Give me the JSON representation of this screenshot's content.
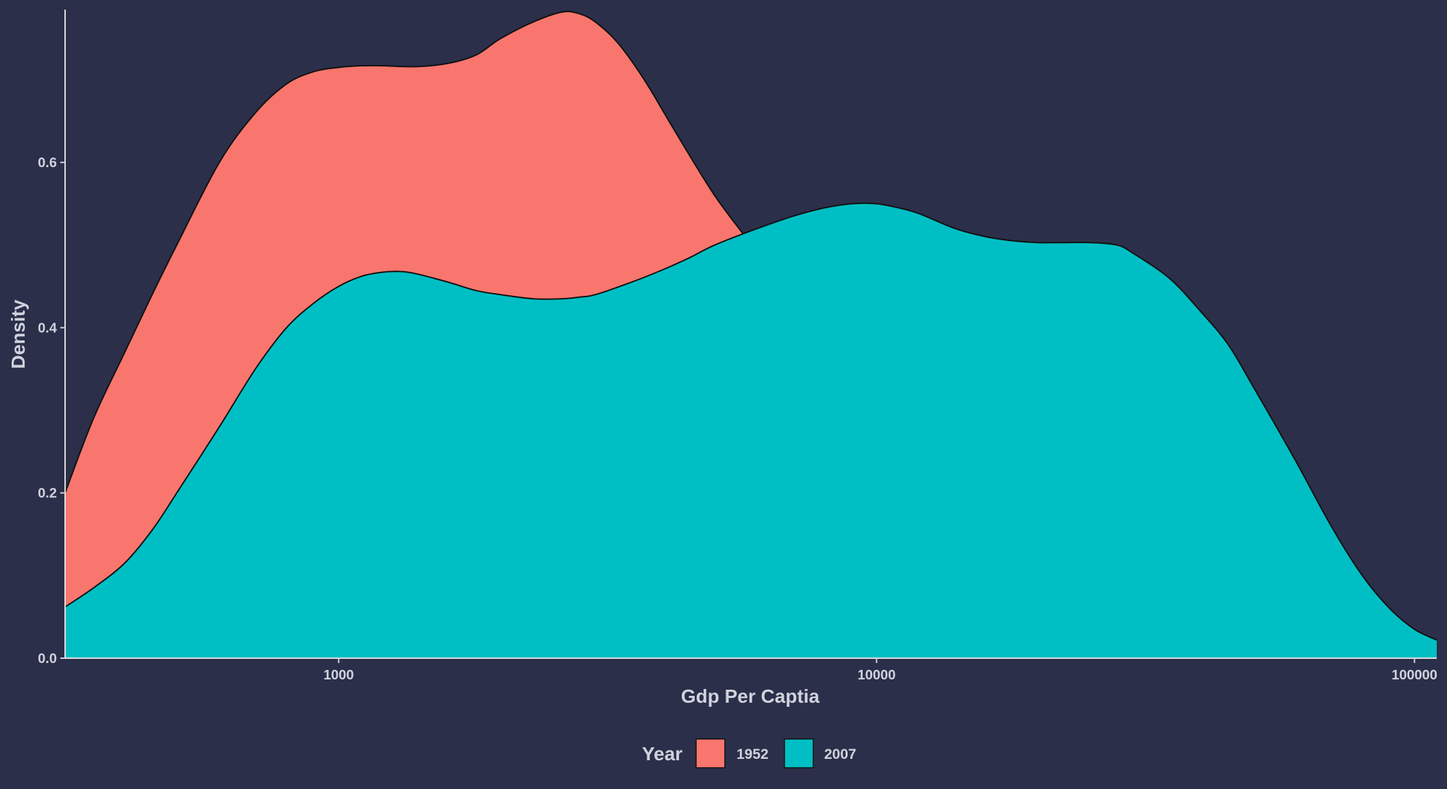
{
  "chart_data": {
    "type": "area",
    "xlabel": "Gdp Per Captia",
    "ylabel": "Density",
    "x_scale": "log10",
    "xlim": [
      310,
      110000
    ],
    "ylim": [
      0,
      0.785
    ],
    "x_ticks": [
      {
        "value": 1000,
        "label": "1000"
      },
      {
        "value": 10000,
        "label": "10000"
      },
      {
        "value": 100000,
        "label": "100000"
      }
    ],
    "y_ticks": [
      {
        "value": 0.0,
        "label": "0.0"
      },
      {
        "value": 0.2,
        "label": "0.2"
      },
      {
        "value": 0.4,
        "label": "0.4"
      },
      {
        "value": 0.6,
        "label": "0.6"
      }
    ],
    "grid": false,
    "legend": {
      "title": "Year",
      "position": "bottom",
      "entries": [
        {
          "label": "1952",
          "color": "#f8766d"
        },
        {
          "label": "2007",
          "color": "#00bfc4"
        }
      ]
    },
    "series": [
      {
        "name": "1952",
        "color": "#f8766d",
        "x": [
          310,
          350,
          400,
          450,
          500,
          600,
          700,
          800,
          900,
          1000,
          1100,
          1200,
          1400,
          1600,
          1800,
          2000,
          2300,
          2600,
          2800,
          3000,
          3300,
          3700,
          4200,
          5000,
          6000,
          7000,
          8000,
          9000,
          10000,
          11000,
          12000,
          14000,
          16000,
          20000,
          25000,
          30000,
          40000,
          50000,
          70000,
          100000,
          110000
        ],
        "y": [
          0.2,
          0.29,
          0.37,
          0.44,
          0.5,
          0.6,
          0.66,
          0.695,
          0.71,
          0.715,
          0.717,
          0.717,
          0.716,
          0.72,
          0.73,
          0.75,
          0.77,
          0.782,
          0.78,
          0.77,
          0.745,
          0.7,
          0.64,
          0.56,
          0.49,
          0.42,
          0.36,
          0.3,
          0.25,
          0.21,
          0.17,
          0.12,
          0.085,
          0.05,
          0.03,
          0.02,
          0.012,
          0.008,
          0.004,
          0.002,
          0.001
        ]
      },
      {
        "name": "2007",
        "color": "#00bfc4",
        "x": [
          310,
          350,
          400,
          450,
          500,
          600,
          700,
          800,
          900,
          1000,
          1100,
          1200,
          1300,
          1400,
          1600,
          1800,
          2000,
          2300,
          2600,
          2800,
          3000,
          3500,
          4000,
          4500,
          5000,
          6000,
          7000,
          8000,
          9000,
          10000,
          11000,
          12000,
          14000,
          16000,
          18000,
          20000,
          22000,
          25000,
          28000,
          30000,
          35000,
          40000,
          45000,
          50000,
          60000,
          70000,
          80000,
          90000,
          100000,
          110000
        ],
        "y": [
          0.062,
          0.085,
          0.115,
          0.155,
          0.2,
          0.28,
          0.35,
          0.4,
          0.43,
          0.45,
          0.462,
          0.467,
          0.468,
          0.465,
          0.455,
          0.445,
          0.44,
          0.435,
          0.435,
          0.437,
          0.44,
          0.455,
          0.47,
          0.485,
          0.5,
          0.52,
          0.535,
          0.545,
          0.55,
          0.55,
          0.545,
          0.538,
          0.52,
          0.51,
          0.505,
          0.503,
          0.503,
          0.503,
          0.5,
          0.49,
          0.46,
          0.42,
          0.38,
          0.33,
          0.24,
          0.16,
          0.1,
          0.06,
          0.035,
          0.022
        ]
      }
    ]
  }
}
